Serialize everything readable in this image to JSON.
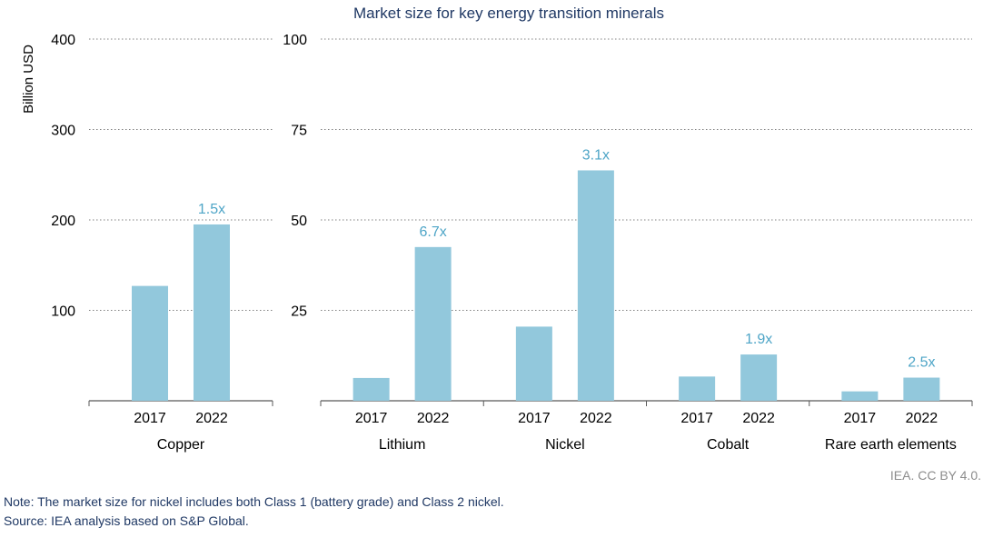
{
  "title": "Market size for key energy transition minerals",
  "credit": "IEA. CC BY 4.0.",
  "note": "Note: The market size for nickel includes both Class 1 (battery grade) and Class 2 nickel.",
  "source": "Source: IEA analysis based on S&P Global.",
  "colors": {
    "bar": "#92c8dc",
    "multiplier": "#4ea5c7",
    "grid": "#808080",
    "axis": "#595959"
  },
  "chart_data": [
    {
      "type": "bar",
      "ylabel": "Billion USD",
      "ylim": [
        0,
        400
      ],
      "yticks": [
        100,
        200,
        300,
        400
      ],
      "groups": [
        {
          "name": "Copper",
          "categories": [
            "2017",
            "2022"
          ],
          "values": [
            127,
            195
          ],
          "multiplier": "1.5x"
        }
      ]
    },
    {
      "type": "bar",
      "ylabel": "",
      "ylim": [
        0,
        100
      ],
      "yticks": [
        25,
        50,
        75,
        100
      ],
      "groups": [
        {
          "name": "Lithium",
          "categories": [
            "2017",
            "2022"
          ],
          "values": [
            6.3,
            42.5
          ],
          "multiplier": "6.7x"
        },
        {
          "name": "Nickel",
          "categories": [
            "2017",
            "2022"
          ],
          "values": [
            20.5,
            63.7
          ],
          "multiplier": "3.1x"
        },
        {
          "name": "Cobalt",
          "categories": [
            "2017",
            "2022"
          ],
          "values": [
            6.7,
            12.8
          ],
          "multiplier": "1.9x"
        },
        {
          "name": "Rare earth elements",
          "categories": [
            "2017",
            "2022"
          ],
          "values": [
            2.6,
            6.4
          ],
          "multiplier": "2.5x"
        }
      ]
    }
  ]
}
